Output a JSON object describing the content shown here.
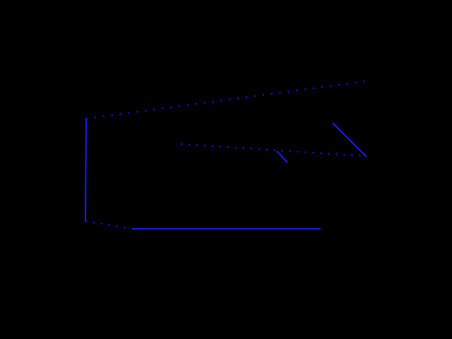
{
  "scene": {
    "background_color": "#000000",
    "stroke_color": "#1a1aff",
    "dotted_segment_color": "#1a1aff"
  }
}
